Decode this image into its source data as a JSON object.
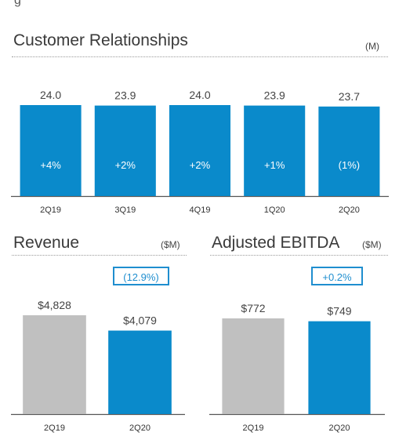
{
  "top_fragment": "g",
  "colors": {
    "blue": "#0a8acb",
    "gray": "#c0c0c0",
    "badge": "#1f8ecf"
  },
  "chart_data": [
    {
      "type": "bar",
      "title": "Customer Relationships",
      "unit": "(M)",
      "categories": [
        "2Q19",
        "3Q19",
        "4Q19",
        "1Q20",
        "2Q20"
      ],
      "values": [
        24.0,
        23.9,
        24.0,
        23.9,
        23.7
      ],
      "value_labels": [
        "24.0",
        "23.9",
        "24.0",
        "23.9",
        "23.7"
      ],
      "inner_labels": [
        "+4%",
        "+2%",
        "+2%",
        "+1%",
        "(1%)"
      ],
      "ylim": [
        22.2,
        24.0
      ],
      "grid": false
    },
    {
      "type": "bar",
      "title": "Revenue",
      "unit": "($M)",
      "badge": "(12.9%)",
      "categories": [
        "2Q19",
        "2Q20"
      ],
      "values": [
        4828,
        4079
      ],
      "value_labels": [
        "$4,828",
        "$4,079"
      ],
      "bar_colors": [
        "gray",
        "blue"
      ],
      "ylim": [
        0,
        4828
      ],
      "grid": false
    },
    {
      "type": "bar",
      "title": "Adjusted EBITDA",
      "unit": "($M)",
      "badge": "+0.2%",
      "categories": [
        "2Q19",
        "2Q20"
      ],
      "values": [
        772,
        749
      ],
      "value_labels": [
        "$772",
        "$749"
      ],
      "bar_colors": [
        "gray",
        "blue"
      ],
      "ylim": [
        0,
        772
      ],
      "grid": false
    }
  ]
}
